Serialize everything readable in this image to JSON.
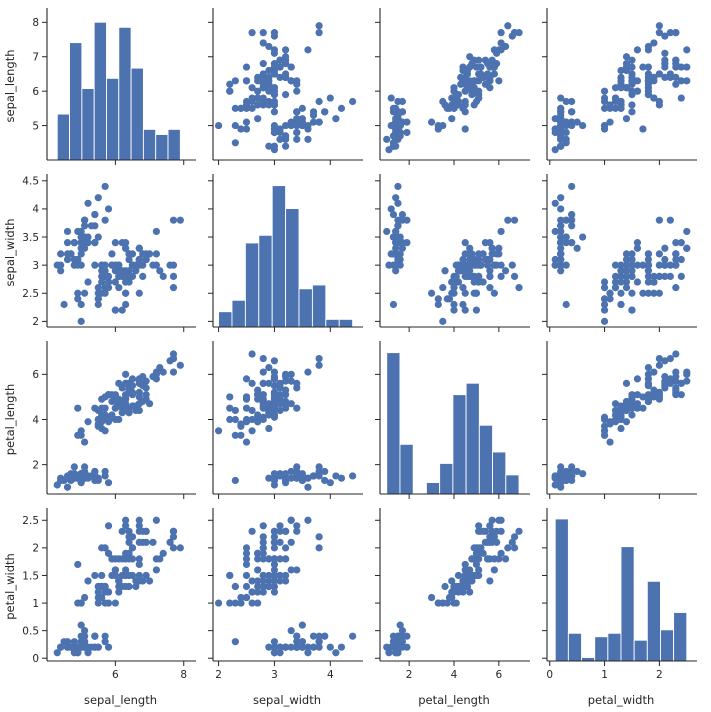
{
  "chart_data": {
    "type": "scatter",
    "kind": "pairplot",
    "variables": [
      "sepal_length",
      "sepal_width",
      "petal_length",
      "petal_width"
    ],
    "color": "#4c72b0",
    "grid": false,
    "axes": {
      "sepal_length": {
        "lim": [
          4.0,
          8.3
        ],
        "ticks": [
          6,
          8
        ],
        "row_ticks": [
          5,
          6,
          7,
          8
        ]
      },
      "sepal_width": {
        "lim": [
          1.9,
          4.55
        ],
        "ticks": [
          2,
          3,
          4
        ],
        "row_ticks": [
          2.0,
          2.5,
          3.0,
          3.5,
          4.0,
          4.5
        ]
      },
      "petal_length": {
        "lim": [
          0.7,
          7.3
        ],
        "ticks": [
          2,
          4,
          6
        ],
        "row_ticks": [
          2,
          4,
          6
        ]
      },
      "petal_width": {
        "lim": [
          -0.05,
          2.65
        ],
        "ticks": [
          0,
          1,
          2
        ],
        "row_ticks": [
          0.0,
          0.5,
          1.0,
          1.5,
          2.0,
          2.5
        ]
      }
    },
    "histograms": {
      "sepal_length": {
        "range": [
          4.3,
          7.9
        ],
        "counts": [
          9,
          23,
          14,
          27,
          16,
          26,
          18,
          6,
          5,
          6
        ],
        "ylim": [
          0,
          29
        ]
      },
      "sepal_width": {
        "range": [
          2.0,
          4.4
        ],
        "counts": [
          4,
          7,
          22,
          24,
          37,
          31,
          10,
          11,
          2,
          2
        ],
        "ylim": [
          0,
          39
        ]
      },
      "petal_length": {
        "range": [
          1.0,
          6.9
        ],
        "counts": [
          37,
          13,
          0,
          3,
          8,
          26,
          29,
          18,
          11,
          5
        ],
        "ylim": [
          0,
          39
        ]
      },
      "petal_width": {
        "range": [
          0.1,
          2.5
        ],
        "counts": [
          41,
          8,
          1,
          7,
          8,
          33,
          6,
          23,
          9,
          14
        ],
        "ylim": [
          0,
          43
        ]
      }
    },
    "points": [
      [
        5.1,
        3.5,
        1.4,
        0.2
      ],
      [
        4.9,
        3.0,
        1.4,
        0.2
      ],
      [
        4.7,
        3.2,
        1.3,
        0.2
      ],
      [
        4.6,
        3.1,
        1.5,
        0.2
      ],
      [
        5.0,
        3.6,
        1.4,
        0.2
      ],
      [
        5.4,
        3.9,
        1.7,
        0.4
      ],
      [
        4.6,
        3.4,
        1.4,
        0.3
      ],
      [
        5.0,
        3.4,
        1.5,
        0.2
      ],
      [
        4.4,
        2.9,
        1.4,
        0.2
      ],
      [
        4.9,
        3.1,
        1.5,
        0.1
      ],
      [
        5.4,
        3.7,
        1.5,
        0.2
      ],
      [
        4.8,
        3.4,
        1.6,
        0.2
      ],
      [
        4.8,
        3.0,
        1.4,
        0.1
      ],
      [
        4.3,
        3.0,
        1.1,
        0.1
      ],
      [
        5.8,
        4.0,
        1.2,
        0.2
      ],
      [
        5.7,
        4.4,
        1.5,
        0.4
      ],
      [
        5.4,
        3.9,
        1.3,
        0.4
      ],
      [
        5.1,
        3.5,
        1.4,
        0.3
      ],
      [
        5.7,
        3.8,
        1.7,
        0.3
      ],
      [
        5.1,
        3.8,
        1.5,
        0.3
      ],
      [
        5.4,
        3.4,
        1.7,
        0.2
      ],
      [
        5.1,
        3.7,
        1.5,
        0.4
      ],
      [
        4.6,
        3.6,
        1.0,
        0.2
      ],
      [
        5.1,
        3.3,
        1.7,
        0.5
      ],
      [
        4.8,
        3.4,
        1.9,
        0.2
      ],
      [
        5.0,
        3.0,
        1.6,
        0.2
      ],
      [
        5.0,
        3.4,
        1.6,
        0.4
      ],
      [
        5.2,
        3.5,
        1.5,
        0.2
      ],
      [
        5.2,
        3.4,
        1.4,
        0.2
      ],
      [
        4.7,
        3.2,
        1.6,
        0.2
      ],
      [
        4.8,
        3.1,
        1.6,
        0.2
      ],
      [
        5.4,
        3.4,
        1.5,
        0.4
      ],
      [
        5.2,
        4.1,
        1.5,
        0.1
      ],
      [
        5.5,
        4.2,
        1.4,
        0.2
      ],
      [
        4.9,
        3.1,
        1.5,
        0.2
      ],
      [
        5.0,
        3.2,
        1.2,
        0.2
      ],
      [
        5.5,
        3.5,
        1.3,
        0.2
      ],
      [
        4.9,
        3.6,
        1.4,
        0.1
      ],
      [
        4.4,
        3.0,
        1.3,
        0.2
      ],
      [
        5.1,
        3.4,
        1.5,
        0.2
      ],
      [
        5.0,
        3.5,
        1.3,
        0.3
      ],
      [
        4.5,
        2.3,
        1.3,
        0.3
      ],
      [
        4.4,
        3.2,
        1.3,
        0.2
      ],
      [
        5.0,
        3.5,
        1.6,
        0.6
      ],
      [
        5.1,
        3.8,
        1.9,
        0.4
      ],
      [
        4.8,
        3.0,
        1.4,
        0.3
      ],
      [
        5.1,
        3.8,
        1.6,
        0.2
      ],
      [
        4.6,
        3.2,
        1.4,
        0.2
      ],
      [
        5.3,
        3.7,
        1.5,
        0.2
      ],
      [
        5.0,
        3.3,
        1.4,
        0.2
      ],
      [
        7.0,
        3.2,
        4.7,
        1.4
      ],
      [
        6.4,
        3.2,
        4.5,
        1.5
      ],
      [
        6.9,
        3.1,
        4.9,
        1.5
      ],
      [
        5.5,
        2.3,
        4.0,
        1.3
      ],
      [
        6.5,
        2.8,
        4.6,
        1.5
      ],
      [
        5.7,
        2.8,
        4.5,
        1.3
      ],
      [
        6.3,
        3.3,
        4.7,
        1.6
      ],
      [
        4.9,
        2.4,
        3.3,
        1.0
      ],
      [
        6.6,
        2.9,
        4.6,
        1.3
      ],
      [
        5.2,
        2.7,
        3.9,
        1.4
      ],
      [
        5.0,
        2.0,
        3.5,
        1.0
      ],
      [
        5.9,
        3.0,
        4.2,
        1.5
      ],
      [
        6.0,
        2.2,
        4.0,
        1.0
      ],
      [
        6.1,
        2.9,
        4.7,
        1.4
      ],
      [
        5.6,
        2.9,
        3.6,
        1.3
      ],
      [
        6.7,
        3.1,
        4.4,
        1.4
      ],
      [
        5.6,
        3.0,
        4.5,
        1.5
      ],
      [
        5.8,
        2.7,
        4.1,
        1.0
      ],
      [
        6.2,
        2.2,
        4.5,
        1.5
      ],
      [
        5.6,
        2.5,
        3.9,
        1.1
      ],
      [
        5.9,
        3.2,
        4.8,
        1.8
      ],
      [
        6.1,
        2.8,
        4.0,
        1.3
      ],
      [
        6.3,
        2.5,
        4.9,
        1.5
      ],
      [
        6.1,
        2.8,
        4.7,
        1.2
      ],
      [
        6.4,
        2.9,
        4.3,
        1.3
      ],
      [
        6.6,
        3.0,
        4.4,
        1.4
      ],
      [
        6.8,
        2.8,
        4.8,
        1.4
      ],
      [
        6.7,
        3.0,
        5.0,
        1.7
      ],
      [
        6.0,
        2.9,
        4.5,
        1.5
      ],
      [
        5.7,
        2.6,
        3.5,
        1.0
      ],
      [
        5.5,
        2.4,
        3.8,
        1.1
      ],
      [
        5.5,
        2.4,
        3.7,
        1.0
      ],
      [
        5.8,
        2.7,
        3.9,
        1.2
      ],
      [
        6.0,
        2.7,
        5.1,
        1.6
      ],
      [
        5.4,
        3.0,
        4.5,
        1.5
      ],
      [
        6.0,
        3.4,
        4.5,
        1.6
      ],
      [
        6.7,
        3.1,
        4.7,
        1.5
      ],
      [
        6.3,
        2.3,
        4.4,
        1.3
      ],
      [
        5.6,
        3.0,
        4.1,
        1.3
      ],
      [
        5.5,
        2.5,
        4.0,
        1.3
      ],
      [
        5.5,
        2.6,
        4.4,
        1.2
      ],
      [
        6.1,
        3.0,
        4.6,
        1.4
      ],
      [
        5.8,
        2.6,
        4.0,
        1.2
      ],
      [
        5.0,
        2.3,
        3.3,
        1.0
      ],
      [
        5.6,
        2.7,
        4.2,
        1.3
      ],
      [
        5.7,
        3.0,
        4.2,
        1.2
      ],
      [
        5.7,
        2.9,
        4.2,
        1.3
      ],
      [
        6.2,
        2.9,
        4.3,
        1.3
      ],
      [
        5.1,
        2.5,
        3.0,
        1.1
      ],
      [
        5.7,
        2.8,
        4.1,
        1.3
      ],
      [
        6.3,
        3.3,
        6.0,
        2.5
      ],
      [
        5.8,
        2.7,
        5.1,
        1.9
      ],
      [
        7.1,
        3.0,
        5.9,
        2.1
      ],
      [
        6.3,
        2.9,
        5.6,
        1.8
      ],
      [
        6.5,
        3.0,
        5.8,
        2.2
      ],
      [
        7.6,
        3.0,
        6.6,
        2.1
      ],
      [
        4.9,
        2.5,
        4.5,
        1.7
      ],
      [
        7.3,
        2.9,
        6.3,
        1.8
      ],
      [
        6.7,
        2.5,
        5.8,
        1.8
      ],
      [
        7.2,
        3.6,
        6.1,
        2.5
      ],
      [
        6.5,
        3.2,
        5.1,
        2.0
      ],
      [
        6.4,
        2.7,
        5.3,
        1.9
      ],
      [
        6.8,
        3.0,
        5.5,
        2.1
      ],
      [
        5.7,
        2.5,
        5.0,
        2.0
      ],
      [
        5.8,
        2.8,
        5.1,
        2.4
      ],
      [
        6.4,
        3.2,
        5.3,
        2.3
      ],
      [
        6.5,
        3.0,
        5.5,
        1.8
      ],
      [
        7.7,
        3.8,
        6.7,
        2.2
      ],
      [
        7.7,
        2.6,
        6.9,
        2.3
      ],
      [
        6.0,
        2.2,
        5.0,
        1.5
      ],
      [
        6.9,
        3.2,
        5.7,
        2.3
      ],
      [
        5.6,
        2.8,
        4.9,
        2.0
      ],
      [
        7.7,
        2.8,
        6.7,
        2.0
      ],
      [
        6.3,
        2.7,
        4.9,
        1.8
      ],
      [
        6.7,
        3.3,
        5.7,
        2.1
      ],
      [
        7.2,
        3.2,
        6.0,
        1.8
      ],
      [
        6.2,
        2.8,
        4.8,
        1.8
      ],
      [
        6.1,
        3.0,
        4.9,
        1.8
      ],
      [
        6.4,
        2.8,
        5.6,
        2.1
      ],
      [
        7.2,
        3.0,
        5.8,
        1.6
      ],
      [
        7.4,
        2.8,
        6.1,
        1.9
      ],
      [
        7.9,
        3.8,
        6.4,
        2.0
      ],
      [
        6.4,
        2.8,
        5.6,
        2.2
      ],
      [
        6.3,
        2.8,
        5.1,
        1.5
      ],
      [
        6.1,
        2.6,
        5.6,
        1.4
      ],
      [
        7.7,
        3.0,
        6.1,
        2.3
      ],
      [
        6.3,
        3.4,
        5.6,
        2.4
      ],
      [
        6.4,
        3.1,
        5.5,
        1.8
      ],
      [
        6.0,
        3.0,
        4.8,
        1.8
      ],
      [
        6.9,
        3.1,
        5.4,
        2.1
      ],
      [
        6.7,
        3.1,
        5.6,
        2.4
      ],
      [
        6.9,
        3.1,
        5.1,
        2.3
      ],
      [
        5.8,
        2.7,
        5.1,
        1.9
      ],
      [
        6.8,
        3.2,
        5.9,
        2.3
      ],
      [
        6.7,
        3.3,
        5.7,
        2.5
      ],
      [
        6.7,
        3.0,
        5.2,
        2.3
      ],
      [
        6.3,
        2.5,
        5.0,
        1.9
      ],
      [
        6.5,
        3.0,
        5.2,
        2.0
      ],
      [
        6.2,
        3.4,
        5.4,
        2.3
      ],
      [
        5.9,
        3.0,
        5.1,
        1.8
      ]
    ]
  }
}
